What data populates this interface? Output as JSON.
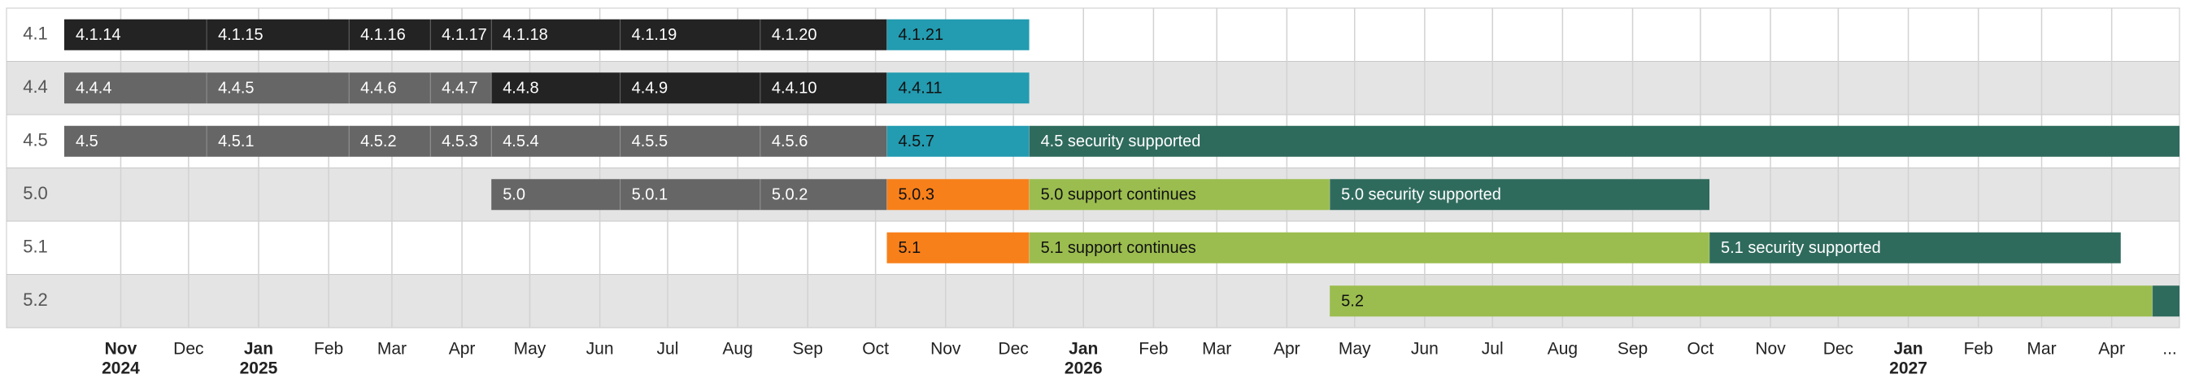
{
  "chart_data": {
    "type": "timeline",
    "xlim": [
      "2024-10-07",
      "2027-05-01"
    ],
    "xticks": [
      {
        "value": "2024-11-01",
        "label": "Nov",
        "year": "2024"
      },
      {
        "value": "2024-12-01",
        "label": "Dec"
      },
      {
        "value": "2025-01-01",
        "label": "Jan",
        "year": "2025"
      },
      {
        "value": "2025-02-01",
        "label": "Feb"
      },
      {
        "value": "2025-03-01",
        "label": "Mar"
      },
      {
        "value": "2025-04-01",
        "label": "Apr"
      },
      {
        "value": "2025-05-01",
        "label": "May"
      },
      {
        "value": "2025-06-01",
        "label": "Jun"
      },
      {
        "value": "2025-07-01",
        "label": "Jul"
      },
      {
        "value": "2025-08-01",
        "label": "Aug"
      },
      {
        "value": "2025-09-01",
        "label": "Sep"
      },
      {
        "value": "2025-10-01",
        "label": "Oct"
      },
      {
        "value": "2025-11-01",
        "label": "Nov"
      },
      {
        "value": "2025-12-01",
        "label": "Dec"
      },
      {
        "value": "2026-01-01",
        "label": "Jan",
        "year": "2026"
      },
      {
        "value": "2026-02-01",
        "label": "Feb"
      },
      {
        "value": "2026-03-01",
        "label": "Mar"
      },
      {
        "value": "2026-04-01",
        "label": "Apr"
      },
      {
        "value": "2026-05-01",
        "label": "May"
      },
      {
        "value": "2026-06-01",
        "label": "Jun"
      },
      {
        "value": "2026-07-01",
        "label": "Jul"
      },
      {
        "value": "2026-08-01",
        "label": "Aug"
      },
      {
        "value": "2026-09-01",
        "label": "Sep"
      },
      {
        "value": "2026-10-01",
        "label": "Oct"
      },
      {
        "value": "2026-11-01",
        "label": "Nov"
      },
      {
        "value": "2026-12-01",
        "label": "Dec"
      },
      {
        "value": "2027-01-01",
        "label": "Jan",
        "year": "2027"
      },
      {
        "value": "2027-02-01",
        "label": "Feb"
      },
      {
        "value": "2027-03-01",
        "label": "Mar"
      },
      {
        "value": "2027-04-01",
        "label": "Apr"
      },
      {
        "value": "2027-05-01",
        "label": "..."
      }
    ],
    "grid": true,
    "rows": [
      {
        "name": "4.1",
        "segments": [
          {
            "label": "4.1.14",
            "start": "2024-10-07",
            "end": "2024-12-09",
            "color": "#232323"
          },
          {
            "label": "4.1.15",
            "start": "2024-12-09",
            "end": "2025-02-10",
            "color": "#232323"
          },
          {
            "label": "4.1.16",
            "start": "2025-02-10",
            "end": "2025-03-18",
            "color": "#232323"
          },
          {
            "label": "4.1.17",
            "start": "2025-03-18",
            "end": "2025-04-14",
            "color": "#232323"
          },
          {
            "label": "4.1.18",
            "start": "2025-04-14",
            "end": "2025-06-10",
            "color": "#232323"
          },
          {
            "label": "4.1.19",
            "start": "2025-06-10",
            "end": "2025-08-11",
            "color": "#232323"
          },
          {
            "label": "4.1.20",
            "start": "2025-08-11",
            "end": "2025-10-06",
            "color": "#232323"
          },
          {
            "label": "4.1.21",
            "start": "2025-10-06",
            "end": "2025-12-08",
            "color": "#239bb0"
          }
        ]
      },
      {
        "name": "4.4",
        "segments": [
          {
            "label": "4.4.4",
            "start": "2024-10-07",
            "end": "2024-12-09",
            "color": "#666666"
          },
          {
            "label": "4.4.5",
            "start": "2024-12-09",
            "end": "2025-02-10",
            "color": "#666666"
          },
          {
            "label": "4.4.6",
            "start": "2025-02-10",
            "end": "2025-03-18",
            "color": "#666666"
          },
          {
            "label": "4.4.7",
            "start": "2025-03-18",
            "end": "2025-04-14",
            "color": "#666666"
          },
          {
            "label": "4.4.8",
            "start": "2025-04-14",
            "end": "2025-06-10",
            "color": "#232323"
          },
          {
            "label": "4.4.9",
            "start": "2025-06-10",
            "end": "2025-08-11",
            "color": "#232323"
          },
          {
            "label": "4.4.10",
            "start": "2025-08-11",
            "end": "2025-10-06",
            "color": "#232323"
          },
          {
            "label": "4.4.11",
            "start": "2025-10-06",
            "end": "2025-12-08",
            "color": "#239bb0"
          }
        ]
      },
      {
        "name": "4.5",
        "segments": [
          {
            "label": "4.5",
            "start": "2024-10-07",
            "end": "2024-12-09",
            "color": "#666666"
          },
          {
            "label": "4.5.1",
            "start": "2024-12-09",
            "end": "2025-02-10",
            "color": "#666666"
          },
          {
            "label": "4.5.2",
            "start": "2025-02-10",
            "end": "2025-03-18",
            "color": "#666666"
          },
          {
            "label": "4.5.3",
            "start": "2025-03-18",
            "end": "2025-04-14",
            "color": "#666666"
          },
          {
            "label": "4.5.4",
            "start": "2025-04-14",
            "end": "2025-06-10",
            "color": "#666666"
          },
          {
            "label": "4.5.5",
            "start": "2025-06-10",
            "end": "2025-08-11",
            "color": "#666666"
          },
          {
            "label": "4.5.6",
            "start": "2025-08-11",
            "end": "2025-10-06",
            "color": "#666666"
          },
          {
            "label": "4.5.7",
            "start": "2025-10-06",
            "end": "2025-12-08",
            "color": "#239bb0"
          },
          {
            "label": "4.5 security supported",
            "start": "2025-12-08",
            "end": "2027-05-01",
            "color": "#2f6b5d"
          }
        ]
      },
      {
        "name": "5.0",
        "segments": [
          {
            "label": "5.0",
            "start": "2025-04-14",
            "end": "2025-06-10",
            "color": "#666666"
          },
          {
            "label": "5.0.1",
            "start": "2025-06-10",
            "end": "2025-08-11",
            "color": "#666666"
          },
          {
            "label": "5.0.2",
            "start": "2025-08-11",
            "end": "2025-10-06",
            "color": "#666666"
          },
          {
            "label": "5.0.3",
            "start": "2025-10-06",
            "end": "2025-12-08",
            "color": "#f8801a"
          },
          {
            "label": "5.0 support continues",
            "start": "2025-12-08",
            "end": "2026-04-20",
            "color": "#9bbd4f"
          },
          {
            "label": "5.0 security supported",
            "start": "2026-04-20",
            "end": "2026-10-05",
            "color": "#2f6b5d"
          }
        ]
      },
      {
        "name": "5.1",
        "segments": [
          {
            "label": "5.1",
            "start": "2025-10-06",
            "end": "2025-12-08",
            "color": "#f8801a"
          },
          {
            "label": "5.1 support continues",
            "start": "2025-12-08",
            "end": "2026-10-05",
            "color": "#9bbd4f"
          },
          {
            "label": "5.1 security supported",
            "start": "2026-10-05",
            "end": "2027-04-05",
            "color": "#2f6b5d"
          }
        ]
      },
      {
        "name": "5.2",
        "segments": [
          {
            "label": "5.2",
            "start": "2026-04-20",
            "end": "2027-04-19",
            "color": "#9bbd4f"
          },
          {
            "start": "2027-04-19",
            "end": "2027-05-01",
            "color": "#2f6b5d"
          }
        ]
      }
    ]
  }
}
